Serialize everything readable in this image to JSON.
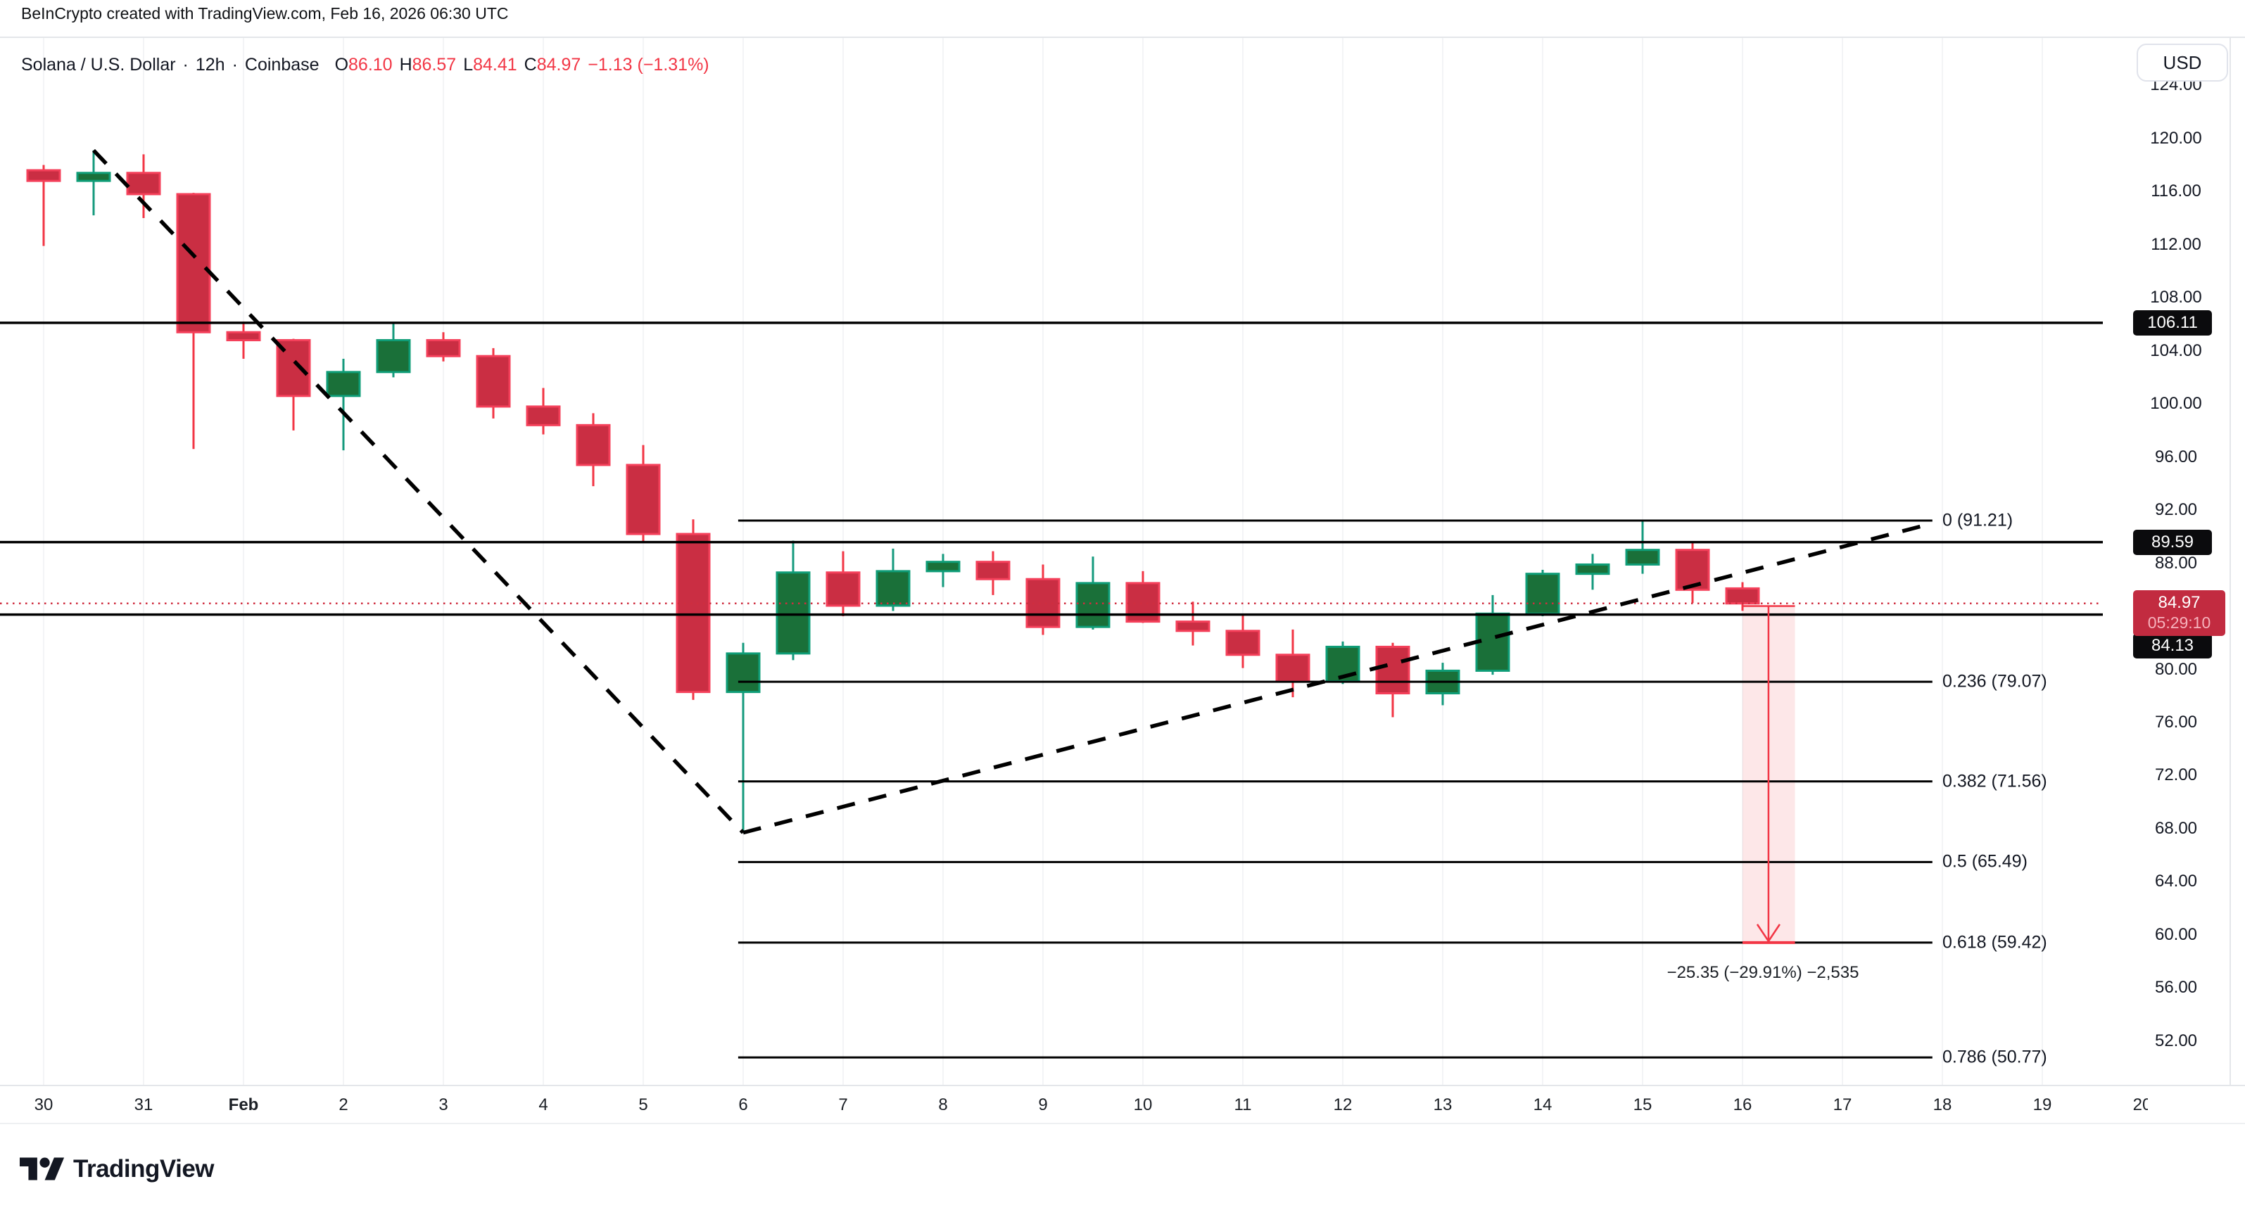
{
  "header": {
    "attribution": "BeInCrypto created with TradingView.com, Feb 16, 2026 06:30 UTC"
  },
  "legend": {
    "symbol": "Solana / U.S. Dollar",
    "sep": "·",
    "interval": "12h",
    "exchange": "Coinbase",
    "o_label": "O",
    "o_value": "86.10",
    "h_label": "H",
    "h_value": "86.57",
    "l_label": "L",
    "l_value": "84.41",
    "c_label": "C",
    "c_value": "84.97",
    "change": "−1.13 (−1.31%)"
  },
  "price_scale": {
    "currency": "USD",
    "ticks": [
      {
        "label": "124.00",
        "value": 124
      },
      {
        "label": "120.00",
        "value": 120
      },
      {
        "label": "116.00",
        "value": 116
      },
      {
        "label": "112.00",
        "value": 112
      },
      {
        "label": "108.00",
        "value": 108
      },
      {
        "label": "104.00",
        "value": 104
      },
      {
        "label": "100.00",
        "value": 100
      },
      {
        "label": "96.00",
        "value": 96
      },
      {
        "label": "92.00",
        "value": 92
      },
      {
        "label": "88.00",
        "value": 88
      },
      {
        "label": "80.00",
        "value": 80
      },
      {
        "label": "76.00",
        "value": 76
      },
      {
        "label": "72.00",
        "value": 72
      },
      {
        "label": "68.00",
        "value": 68
      },
      {
        "label": "64.00",
        "value": 64
      },
      {
        "label": "60.00",
        "value": 60
      },
      {
        "label": "56.00",
        "value": 56
      },
      {
        "label": "52.00",
        "value": 52
      }
    ],
    "line_labels": [
      {
        "label": "106.11",
        "value": 106.11
      },
      {
        "label": "89.59",
        "value": 89.59
      },
      {
        "label": "84.13",
        "value": 84.13,
        "pushed_below_last": true
      }
    ],
    "last": {
      "label": "84.97",
      "countdown": "05:29:10",
      "value": 84.97
    }
  },
  "date_axis": {
    "labels": [
      "30",
      "31",
      "Feb",
      "2",
      "3",
      "4",
      "5",
      "6",
      "7",
      "8",
      "9",
      "10",
      "11",
      "12",
      "13",
      "14",
      "15",
      "16",
      "17",
      "18",
      "19",
      "20"
    ],
    "bold_index": 2
  },
  "branding": {
    "name": "TradingView"
  },
  "colors": {
    "up_fill": "#1a7039",
    "up_border": "#0f9d77",
    "up_wick": "#159a7d",
    "down_fill": "#ca2e43",
    "down_border": "#f4405a",
    "down_wick": "#f23645",
    "accent_red": "#f23645",
    "dotted_line": "#cf2d3f",
    "line_black": "#000000",
    "grid": "#f3f4f6",
    "border": "#e4e6ea",
    "label_box_black": "#0b0b0d",
    "label_box_red": "#c22b40"
  },
  "chart_data": {
    "type": "candlestick",
    "title": "Solana / U.S. Dollar",
    "interval": "12h",
    "exchange": "Coinbase",
    "ohlc_current": {
      "open": 86.1,
      "high": 86.57,
      "low": 84.41,
      "close": 84.97,
      "change": -1.13,
      "change_pct": -1.31
    },
    "x_labels": [
      "30",
      "31",
      "Feb",
      "2",
      "3",
      "4",
      "5",
      "6",
      "7",
      "8",
      "9",
      "10",
      "11",
      "12",
      "13",
      "14",
      "15",
      "16",
      "17",
      "18",
      "19",
      "20"
    ],
    "ylim": [
      47.6,
      128.6
    ],
    "grid": "vertical-only",
    "candles_ohlc": [
      [
        117.6,
        118.0,
        111.9,
        116.8
      ],
      [
        116.8,
        119.1,
        114.2,
        117.4
      ],
      [
        117.4,
        118.8,
        114.0,
        115.8
      ],
      [
        115.8,
        115.9,
        96.6,
        105.4
      ],
      [
        105.4,
        106.2,
        103.4,
        104.8
      ],
      [
        104.8,
        104.9,
        98.0,
        100.6
      ],
      [
        100.6,
        103.4,
        96.5,
        102.4
      ],
      [
        102.4,
        106.1,
        102.0,
        104.8
      ],
      [
        104.8,
        105.4,
        103.2,
        103.6
      ],
      [
        103.6,
        104.2,
        98.9,
        99.8
      ],
      [
        99.8,
        101.2,
        97.7,
        98.4
      ],
      [
        98.4,
        99.3,
        93.8,
        95.4
      ],
      [
        95.4,
        96.9,
        89.6,
        90.2
      ],
      [
        90.2,
        91.3,
        77.7,
        78.3
      ],
      [
        78.3,
        82.0,
        67.7,
        81.2
      ],
      [
        81.2,
        89.7,
        80.7,
        87.3
      ],
      [
        87.3,
        88.9,
        84.0,
        84.8
      ],
      [
        84.8,
        89.1,
        84.4,
        87.4
      ],
      [
        87.4,
        88.7,
        86.2,
        88.1
      ],
      [
        88.1,
        88.9,
        85.6,
        86.8
      ],
      [
        86.8,
        87.9,
        82.6,
        83.2
      ],
      [
        83.2,
        88.5,
        83.0,
        86.5
      ],
      [
        86.5,
        87.4,
        83.5,
        83.6
      ],
      [
        83.6,
        85.1,
        81.8,
        82.9
      ],
      [
        82.9,
        84.2,
        80.1,
        81.1
      ],
      [
        81.1,
        83.0,
        77.9,
        79.1
      ],
      [
        79.1,
        82.1,
        78.9,
        81.7
      ],
      [
        81.7,
        82.0,
        76.4,
        78.2
      ],
      [
        78.2,
        80.5,
        77.3,
        79.9
      ],
      [
        79.9,
        85.6,
        79.6,
        84.2
      ],
      [
        84.2,
        87.5,
        84.0,
        87.2
      ],
      [
        87.2,
        88.7,
        86.0,
        87.9
      ],
      [
        87.9,
        91.2,
        87.2,
        89.0
      ],
      [
        89.0,
        89.6,
        85.0,
        86.0
      ],
      [
        86.1,
        86.57,
        84.41,
        84.97
      ]
    ],
    "price_lines": [
      106.11,
      89.59,
      84.13
    ],
    "last_price_line": 84.97,
    "fib_retracement": {
      "x_range_candles": [
        13.9,
        37.8
      ],
      "levels": [
        {
          "ratio": "0",
          "price": 91.21,
          "label": "0 (91.21)"
        },
        {
          "ratio": "0.236",
          "price": 79.07,
          "label": "0.236 (79.07)"
        },
        {
          "ratio": "0.382",
          "price": 71.56,
          "label": "0.382 (71.56)"
        },
        {
          "ratio": "0.5",
          "price": 65.49,
          "label": "0.5 (65.49)"
        },
        {
          "ratio": "0.618",
          "price": 59.42,
          "label": "0.618 (59.42)"
        },
        {
          "ratio": "0.786",
          "price": 50.77,
          "label": "0.786 (50.77)"
        }
      ]
    },
    "trend_lines": [
      {
        "style": "dashed",
        "points_candle_price": [
          [
            1,
            119.1
          ],
          [
            14,
            67.7
          ]
        ]
      },
      {
        "style": "dashed",
        "points_candle_price": [
          [
            14,
            67.7
          ],
          [
            37.8,
            91.0
          ]
        ]
      }
    ],
    "measure": {
      "label": "−25.35 (−29.91%) −2,535",
      "from_price": 84.77,
      "to_price": 59.42,
      "band_candle_range": [
        34.0,
        35.05
      ],
      "arrow_candle": 34.52
    }
  }
}
